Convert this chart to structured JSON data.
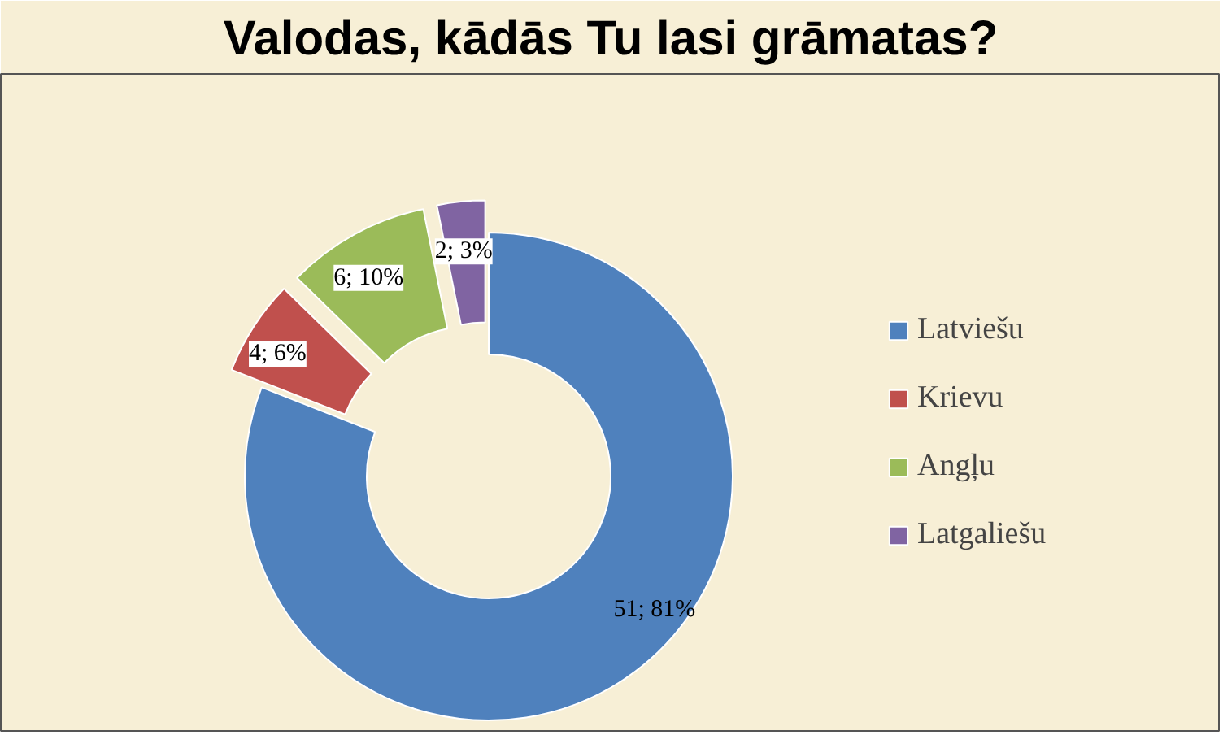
{
  "chart_data": {
    "type": "donut",
    "title": "Valodas, kādās Tu lasi grāmatas?",
    "categories": [
      "Latviešu",
      "Krievu",
      "Angļu",
      "Latgaliešu"
    ],
    "values": [
      51,
      4,
      6,
      2
    ],
    "colors": [
      "#4f81bd",
      "#c0504d",
      "#9bbb59",
      "#8064a2"
    ],
    "value_labels": [
      "51; 81%",
      "4; 6%",
      "6; 10%",
      "2; 3%"
    ],
    "legend": "right"
  }
}
